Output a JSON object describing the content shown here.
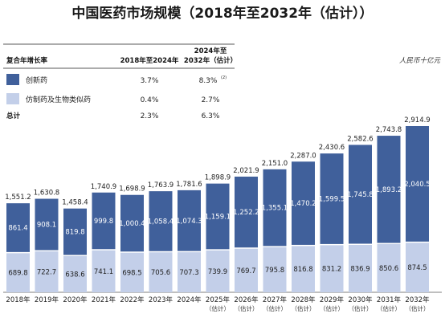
{
  "chart_data": {
    "type": "bar",
    "stacked": true,
    "title": "中国医药市场规模（2018年至2032年（估计））",
    "unit_label": "人民币十亿元",
    "categories": [
      "2018年",
      "2019年",
      "2020年",
      "2021年",
      "2022年",
      "2023年",
      "2024年",
      "2025年",
      "2026年",
      "2027年",
      "2028年",
      "2029年",
      "2030年",
      "2031年",
      "2032年"
    ],
    "category_sublabels": [
      "",
      "",
      "",
      "",
      "",
      "",
      "",
      "（估计）",
      "（估计）",
      "（估计）",
      "（估计）",
      "（估计）",
      "（估计）",
      "（估计）",
      "（估计）"
    ],
    "series": [
      {
        "name": "仿制药及生物类似药",
        "color": "#c3cfe9",
        "values": [
          689.8,
          722.7,
          638.6,
          741.1,
          698.5,
          705.6,
          707.3,
          739.9,
          769.7,
          795.8,
          816.8,
          831.2,
          836.9,
          850.6,
          874.5
        ],
        "labels": [
          "689.8",
          "722.7",
          "638.6",
          "741.1",
          "698.5",
          "705.6",
          "707.3",
          "739.9",
          "769.7",
          "795.8",
          "816.8",
          "831.2",
          "836.9",
          "850.6",
          "874.5"
        ]
      },
      {
        "name": "创新药",
        "color": "#40609b",
        "values": [
          861.4,
          908.1,
          819.8,
          999.8,
          1000.4,
          1058.4,
          1074.3,
          1159.1,
          1252.2,
          1355.1,
          1470.2,
          1599.5,
          1745.8,
          1893.2,
          2040.5
        ],
        "labels": [
          "861.4",
          "908.1",
          "819.8",
          "999.8",
          "1,000.4",
          "1,058.4",
          "1,074.3",
          "1,159.1",
          "1,252.2",
          "1,355.1",
          "1,470.2",
          "1,599.5",
          "1,745.8",
          "1,893.2",
          "2,040.5"
        ]
      }
    ],
    "totals": [
      "1,551.2",
      "1,630.8",
      "1,458.4",
      "1,740.9",
      "1,698.9",
      "1,763.9",
      "1,781.6",
      "1,898.9",
      "2,021.9",
      "2,151.0",
      "2,287.0",
      "2,430.6",
      "2,582.6",
      "2,743.8",
      "2,914.9"
    ],
    "total_values": [
      1551.2,
      1630.8,
      1458.4,
      1740.9,
      1698.9,
      1763.9,
      1781.6,
      1898.9,
      2021.9,
      2151.0,
      2287.0,
      2430.6,
      2582.6,
      2743.8,
      2914.9
    ],
    "ylim": [
      0,
      3000
    ],
    "grid": false
  },
  "cagr_table": {
    "header_label": "复合年增长率",
    "col1": "2018年至2024年",
    "col2_line1": "2024年至",
    "col2_line2": "2032年（估计）",
    "rows": [
      {
        "label": "创新药",
        "swatch": "#40609b",
        "v1": "3.7%",
        "v2": "8.3%",
        "v2_sup": "(2)"
      },
      {
        "label": "仿制药及生物类似药",
        "swatch": "#c3cfe9",
        "v1": "0.4%",
        "v2": "2.7%",
        "v2_sup": ""
      },
      {
        "label": "总计",
        "swatch": "",
        "v1": "2.3%",
        "v2": "6.3%",
        "v2_sup": ""
      }
    ]
  }
}
